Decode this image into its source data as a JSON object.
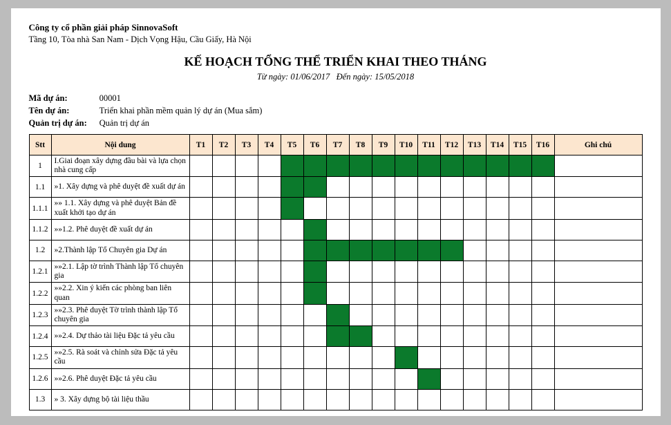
{
  "company": {
    "name": "Công ty cổ phần giải pháp SinnovaSoft",
    "address": "Tầng 10, Tòa nhà San Nam - Dịch Vọng Hậu, Cầu Giấy, Hà Nội"
  },
  "title": "KẾ HOẠCH TỔNG THỂ TRIỂN KHAI THEO THÁNG",
  "date_range": {
    "prefix": "Từ ngày:",
    "from": "01/06/2017",
    "mid": "Đến ngày:",
    "to": "15/05/2018"
  },
  "meta": {
    "code_label": "Mã dự án:",
    "code_value": "00001",
    "name_label": "Tên dự án:",
    "name_value": "Triển khai phần mềm quản lý dự án (Mua sắm)",
    "admin_label": "Quản trị dự án:",
    "admin_value": "Quản trị dự án"
  },
  "headers": {
    "stt": "Stt",
    "content": "Nội dung",
    "months": [
      "T1",
      "T2",
      "T3",
      "T4",
      "T5",
      "T6",
      "T7",
      "T8",
      "T9",
      "T10",
      "T11",
      "T12",
      "T13",
      "T14",
      "T15",
      "T16"
    ],
    "note": "Ghi chú"
  },
  "colors": {
    "header_bg": "#fce6cf",
    "bar_fill": "#0b7a2c",
    "border": "#000000",
    "page_bg": "#ffffff",
    "outer_bg": "#bcbcbc"
  },
  "rows": [
    {
      "stt": "1",
      "desc": "I.Giai đoạn xây dựng đầu bài và lựa chọn nhà cung cấp",
      "start": 5,
      "end": 16
    },
    {
      "stt": "1.1",
      "desc": "  »1. Xây dựng và phê duyệt đề xuất dự án",
      "start": 5,
      "end": 6
    },
    {
      "stt": "1.1.1",
      "desc": "  »» 1.1. Xây dựng và phê duyệt Bản đề xuất khởi tạo dự án",
      "start": 5,
      "end": 5
    },
    {
      "stt": "1.1.2",
      "desc": "  »»1.2. Phê duyệt đề xuất dự án",
      "start": 6,
      "end": 6
    },
    {
      "stt": "1.2",
      "desc": "  »2.Thành lập Tổ Chuyên gia Dự án",
      "start": 6,
      "end": 12
    },
    {
      "stt": "1.2.1",
      "desc": "  »»2.1. Lập tờ trình Thành lập Tổ chuyên gia",
      "start": 6,
      "end": 6
    },
    {
      "stt": "1.2.2",
      "desc": "  »»2.2. Xin ý kiến các phòng ban liên quan",
      "start": 6,
      "end": 6
    },
    {
      "stt": "1.2.3",
      "desc": "  »»2.3. Phê duyệt Tờ trình thành lập Tổ chuyên gia",
      "start": 7,
      "end": 7
    },
    {
      "stt": "1.2.4",
      "desc": "  »»2.4.  Dự thảo tài liệu Đặc tả yêu cầu",
      "start": 7,
      "end": 8
    },
    {
      "stt": "1.2.5",
      "desc": "  »»2.5.  Rà soát và chỉnh sửa Đặc tả yêu cầu",
      "start": 10,
      "end": 10
    },
    {
      "stt": "1.2.6",
      "desc": "  »»2.6.  Phê duyệt Đặc tả yêu cầu",
      "start": 11,
      "end": 11
    },
    {
      "stt": "1.3",
      "desc": "  » 3. Xây dựng bộ tài liệu thầu",
      "start": 0,
      "end": 0
    }
  ]
}
